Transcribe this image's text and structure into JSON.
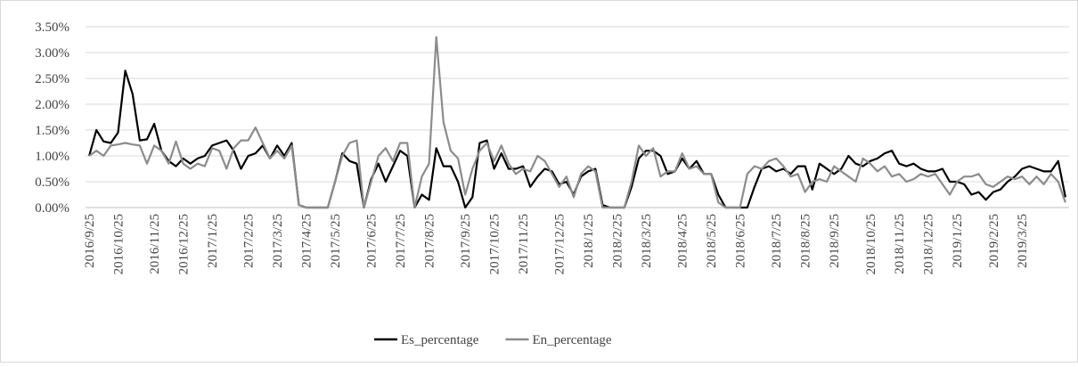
{
  "chart_data": {
    "type": "line",
    "categories": [
      "2016/9/25",
      null,
      null,
      null,
      "2016/10/25",
      null,
      null,
      null,
      null,
      "2016/11/25",
      null,
      null,
      null,
      "2016/12/25",
      null,
      null,
      null,
      "2017/1/25",
      null,
      null,
      null,
      null,
      "2017/2/25",
      null,
      null,
      null,
      "2017/3/25",
      null,
      null,
      null,
      "2017/4/25",
      null,
      null,
      null,
      "2017/5/25",
      null,
      null,
      null,
      null,
      "2017/6/25",
      null,
      null,
      null,
      "2017/7/25",
      null,
      null,
      null,
      "2017/8/25",
      null,
      null,
      null,
      null,
      "2017/9/25",
      null,
      null,
      null,
      "2017/10/25",
      null,
      null,
      null,
      "2017/11/25",
      null,
      null,
      null,
      null,
      "2017/12/25",
      null,
      null,
      null,
      "2018/1/25",
      null,
      null,
      null,
      "2018/2/25",
      null,
      null,
      null,
      "2018/3/25",
      null,
      null,
      null,
      null,
      "2018/4/25",
      null,
      null,
      null,
      "2018/5/25",
      null,
      null,
      null,
      "2018/6/25",
      null,
      null,
      null,
      null,
      "2018/7/25",
      null,
      null,
      null,
      "2018/8/25",
      null,
      null,
      null,
      "2018/9/25",
      null,
      null,
      null,
      null,
      "2018/10/25",
      null,
      null,
      null,
      "2018/11/25",
      null,
      null,
      null,
      "2018/12/25",
      null,
      null,
      null,
      "2019/1/25",
      null,
      null,
      null,
      null,
      "2019/2/25",
      null,
      null,
      null,
      "2019/3/25",
      null,
      null,
      null,
      null,
      null,
      null
    ],
    "series": [
      {
        "name": "Es_percentage",
        "color": "#000000",
        "values": [
          1.0,
          1.5,
          1.28,
          1.25,
          1.45,
          2.65,
          2.2,
          1.3,
          1.32,
          1.62,
          1.1,
          0.9,
          0.8,
          0.95,
          0.85,
          0.95,
          1.0,
          1.2,
          1.25,
          1.3,
          1.1,
          0.75,
          1.0,
          1.05,
          1.2,
          0.95,
          1.2,
          1.0,
          1.25,
          0.05,
          0.0,
          0.0,
          0.0,
          0.0,
          0.5,
          1.05,
          0.9,
          0.85,
          0.0,
          0.55,
          0.85,
          0.5,
          0.8,
          1.1,
          1.0,
          0.0,
          0.25,
          0.15,
          1.15,
          0.8,
          0.8,
          0.5,
          0.0,
          0.2,
          1.25,
          1.3,
          0.75,
          1.05,
          0.75,
          0.75,
          0.8,
          0.4,
          0.6,
          0.75,
          0.7,
          0.45,
          0.5,
          0.25,
          0.6,
          0.7,
          0.75,
          0.05,
          0.0,
          0.0,
          0.0,
          0.4,
          0.95,
          1.1,
          1.1,
          1.0,
          0.65,
          0.7,
          0.95,
          0.75,
          0.9,
          0.65,
          0.65,
          0.25,
          0.0,
          0.0,
          0.0,
          0.0,
          0.4,
          0.75,
          0.8,
          0.7,
          0.75,
          0.65,
          0.8,
          0.8,
          0.35,
          0.85,
          0.75,
          0.65,
          0.75,
          1.0,
          0.85,
          0.8,
          0.9,
          0.95,
          1.05,
          1.1,
          0.85,
          0.8,
          0.85,
          0.75,
          0.7,
          0.7,
          0.75,
          0.5,
          0.5,
          0.45,
          0.25,
          0.3,
          0.15,
          0.3,
          0.35,
          0.5,
          0.6,
          0.75,
          0.8,
          0.75,
          0.7,
          0.7,
          0.9,
          0.2
        ]
      },
      {
        "name": "En_percentage",
        "color": "#8c8c8c",
        "values": [
          1.0,
          1.1,
          1.0,
          1.2,
          1.22,
          1.25,
          1.22,
          1.2,
          0.85,
          1.2,
          1.1,
          0.85,
          1.28,
          0.85,
          0.75,
          0.85,
          0.8,
          1.15,
          1.1,
          0.75,
          1.15,
          1.3,
          1.3,
          1.55,
          1.25,
          0.95,
          1.1,
          0.95,
          1.2,
          0.05,
          0.0,
          0.0,
          0.0,
          0.0,
          0.5,
          1.0,
          1.25,
          1.3,
          0.0,
          0.5,
          1.0,
          1.15,
          0.9,
          1.25,
          1.25,
          0.0,
          0.6,
          0.85,
          3.3,
          1.65,
          1.1,
          0.95,
          0.25,
          0.75,
          1.1,
          1.25,
          0.9,
          1.2,
          0.85,
          0.65,
          0.75,
          0.7,
          1.0,
          0.9,
          0.65,
          0.4,
          0.6,
          0.2,
          0.65,
          0.8,
          0.7,
          0.0,
          0.0,
          0.0,
          0.0,
          0.5,
          1.2,
          1.0,
          1.15,
          0.6,
          0.7,
          0.7,
          1.05,
          0.75,
          0.8,
          0.65,
          0.65,
          0.1,
          0.0,
          0.0,
          0.0,
          0.65,
          0.8,
          0.75,
          0.9,
          0.95,
          0.8,
          0.6,
          0.65,
          0.3,
          0.5,
          0.55,
          0.5,
          0.8,
          0.7,
          0.6,
          0.5,
          0.95,
          0.85,
          0.7,
          0.8,
          0.6,
          0.65,
          0.5,
          0.55,
          0.65,
          0.6,
          0.65,
          0.45,
          0.25,
          0.5,
          0.6,
          0.6,
          0.65,
          0.45,
          0.4,
          0.5,
          0.6,
          0.55,
          0.6,
          0.45,
          0.6,
          0.45,
          0.65,
          0.5,
          0.1
        ]
      }
    ],
    "ylim": [
      0,
      3.5
    ],
    "yticks": [
      {
        "value": 0,
        "label": "0.00%"
      },
      {
        "value": 0.5,
        "label": "0.50%"
      },
      {
        "value": 1.0,
        "label": "1.00%"
      },
      {
        "value": 1.5,
        "label": "1.50%"
      },
      {
        "value": 2.0,
        "label": "2.00%"
      },
      {
        "value": 2.5,
        "label": "2.50%"
      },
      {
        "value": 3.0,
        "label": "3.00%"
      },
      {
        "value": 3.5,
        "label": "3.50%"
      }
    ],
    "grid": true,
    "legend": "bottom"
  }
}
